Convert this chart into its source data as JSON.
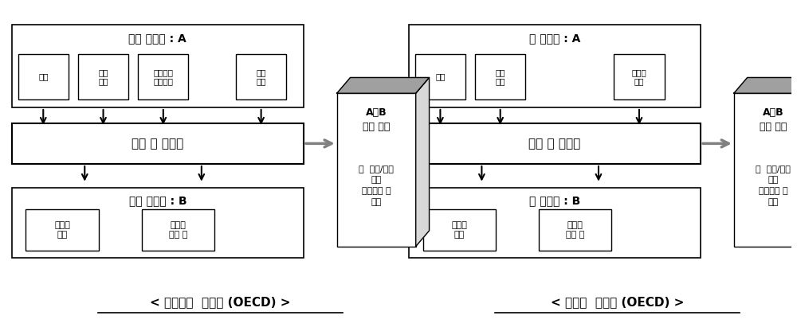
{
  "bg_color": "#ffffff",
  "left_diagram": {
    "input_title": "질소 투입량 : A",
    "input_boxes": [
      "비료",
      "가축\n분뇨",
      "생물학적\n질소고정",
      "대기\n침적"
    ],
    "middle_box": "지역 내 농경지",
    "output_title": "질소 산출량 : B",
    "output_boxes": [
      "판매용\n작물",
      "사료작\n물과 풀"
    ],
    "cube_line1": "A－B",
    "cube_line2": "양분 수지",
    "cube_line3": "이  흑자/적자\n분은\n다음으로 배\n출됨",
    "caption": "< 질소수지  개념도 (OECD) >"
  },
  "right_diagram": {
    "input_title": "인 투입량 : A",
    "input_boxes": [
      "비료",
      "가축\n분뇨",
      "파종과\n식재"
    ],
    "middle_box": "지역 내 농경지",
    "output_title": "인 산출량 : B",
    "output_boxes": [
      "판매용\n작물",
      "사료작\n물과 풀"
    ],
    "cube_line1": "A－B",
    "cube_line2": "양분 수지",
    "cube_line3": "이  흑자/적자\n분은\n다음으로 배\n출됨",
    "caption": "< 인수지  개념도 (OECD) >"
  }
}
